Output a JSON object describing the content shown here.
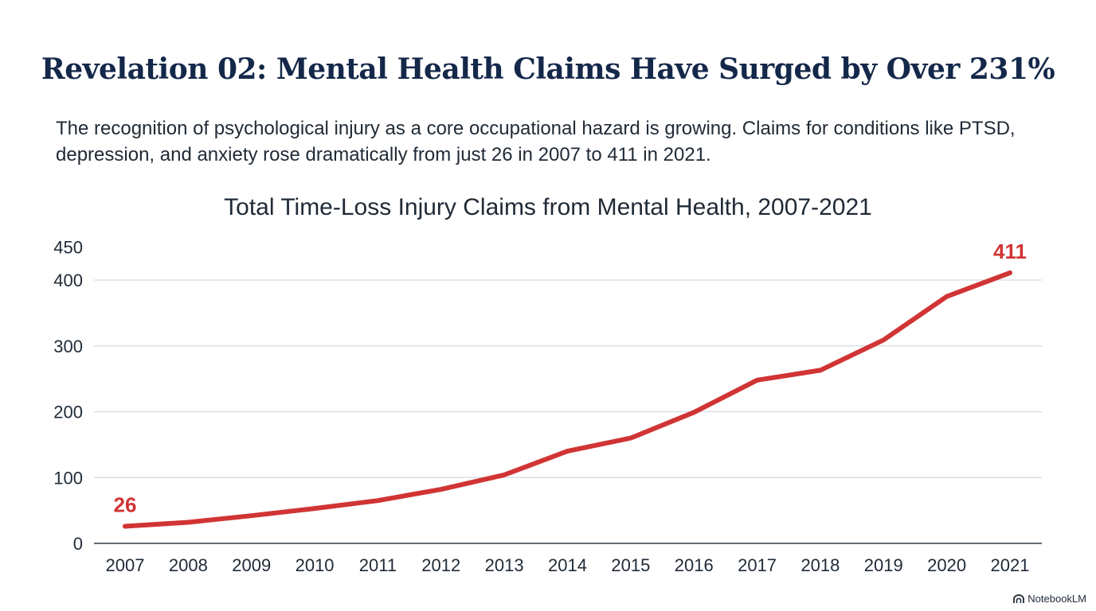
{
  "headline": "Revelation 02: Mental Health Claims Have Surged by Over 231%",
  "subtext": "The recognition of psychological injury as a core occupational hazard is growing. Claims for conditions like PTSD, depression, and anxiety rose dramatically from just 26 in 2007 to 411 in 2021.",
  "brand": {
    "label": "NotebookLM",
    "icon": "notebooklm-logo-icon"
  },
  "colors": {
    "headline": "#14284a",
    "series": "#d13434",
    "grid": "#d3dce3"
  },
  "chart_data": {
    "type": "line",
    "title": "Total Time-Loss Injury Claims from Mental Health, 2007-2021",
    "xlabel": "",
    "ylabel": "",
    "categories": [
      "2007",
      "2008",
      "2009",
      "2010",
      "2011",
      "2012",
      "2013",
      "2014",
      "2015",
      "2016",
      "2017",
      "2018",
      "2019",
      "2020",
      "2021"
    ],
    "series": [
      {
        "values": [
          26,
          32,
          42,
          53,
          65,
          82,
          104,
          140,
          160,
          199,
          248,
          263,
          309,
          375,
          411
        ]
      }
    ],
    "ylim": [
      0,
      450
    ],
    "yticks": [
      0,
      100,
      200,
      300,
      400,
      450
    ],
    "grid": true,
    "annotations": [
      {
        "category": "2007",
        "text": "26"
      },
      {
        "category": "2021",
        "text": "411"
      }
    ]
  }
}
